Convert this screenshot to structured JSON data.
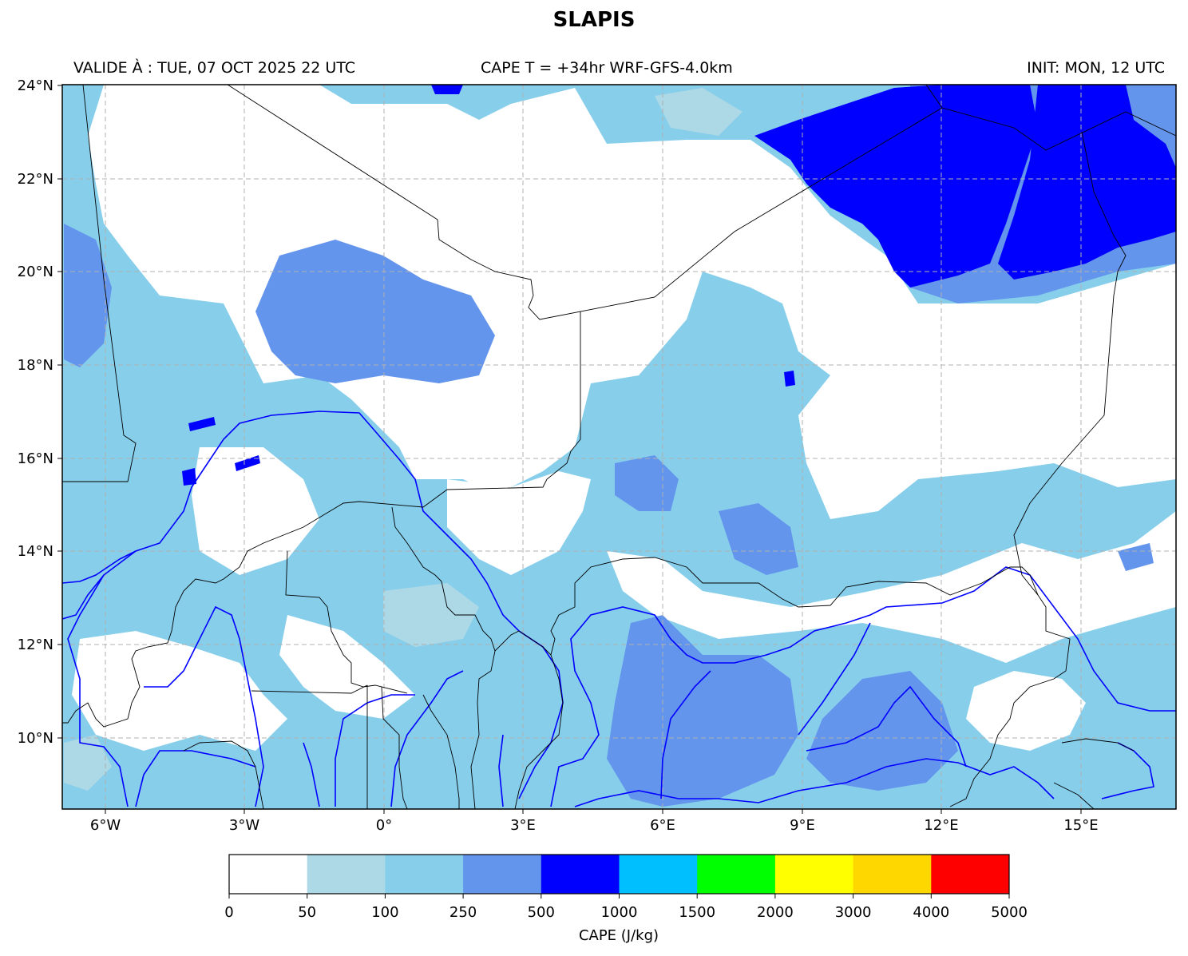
{
  "title": "SLAPIS",
  "subtitle_left": "VALIDE À : TUE, 07 OCT 2025 22 UTC",
  "subtitle_center": "CAPE T = +34hr WRF-GFS-4.0km",
  "subtitle_right": "INIT: MON, 12 UTC",
  "map": {
    "lon_range": [
      -7,
      17
    ],
    "lat_range": [
      8.5,
      24
    ],
    "lat_ticks": [
      "24°N",
      "22°N",
      "20°N",
      "18°N",
      "16°N",
      "14°N",
      "12°N",
      "10°N"
    ],
    "lon_ticks": [
      "6°W",
      "3°W",
      "0°",
      "3°E",
      "6°E",
      "9°E",
      "12°E",
      "15°E"
    ],
    "grid": true,
    "river_color": "#0000ff",
    "border_color": "#000000"
  },
  "colorbar": {
    "label": "CAPE (J/kg)",
    "ticks": [
      "0",
      "50",
      "100",
      "250",
      "500",
      "1000",
      "1500",
      "2000",
      "3000",
      "4000",
      "5000"
    ],
    "colors": [
      "#ffffff",
      "#add8e6",
      "#87ceeb",
      "#6495ed",
      "#0000ff",
      "#00bfff",
      "#00ff00",
      "#ffff00",
      "#ffd700",
      "#ff0000"
    ]
  }
}
